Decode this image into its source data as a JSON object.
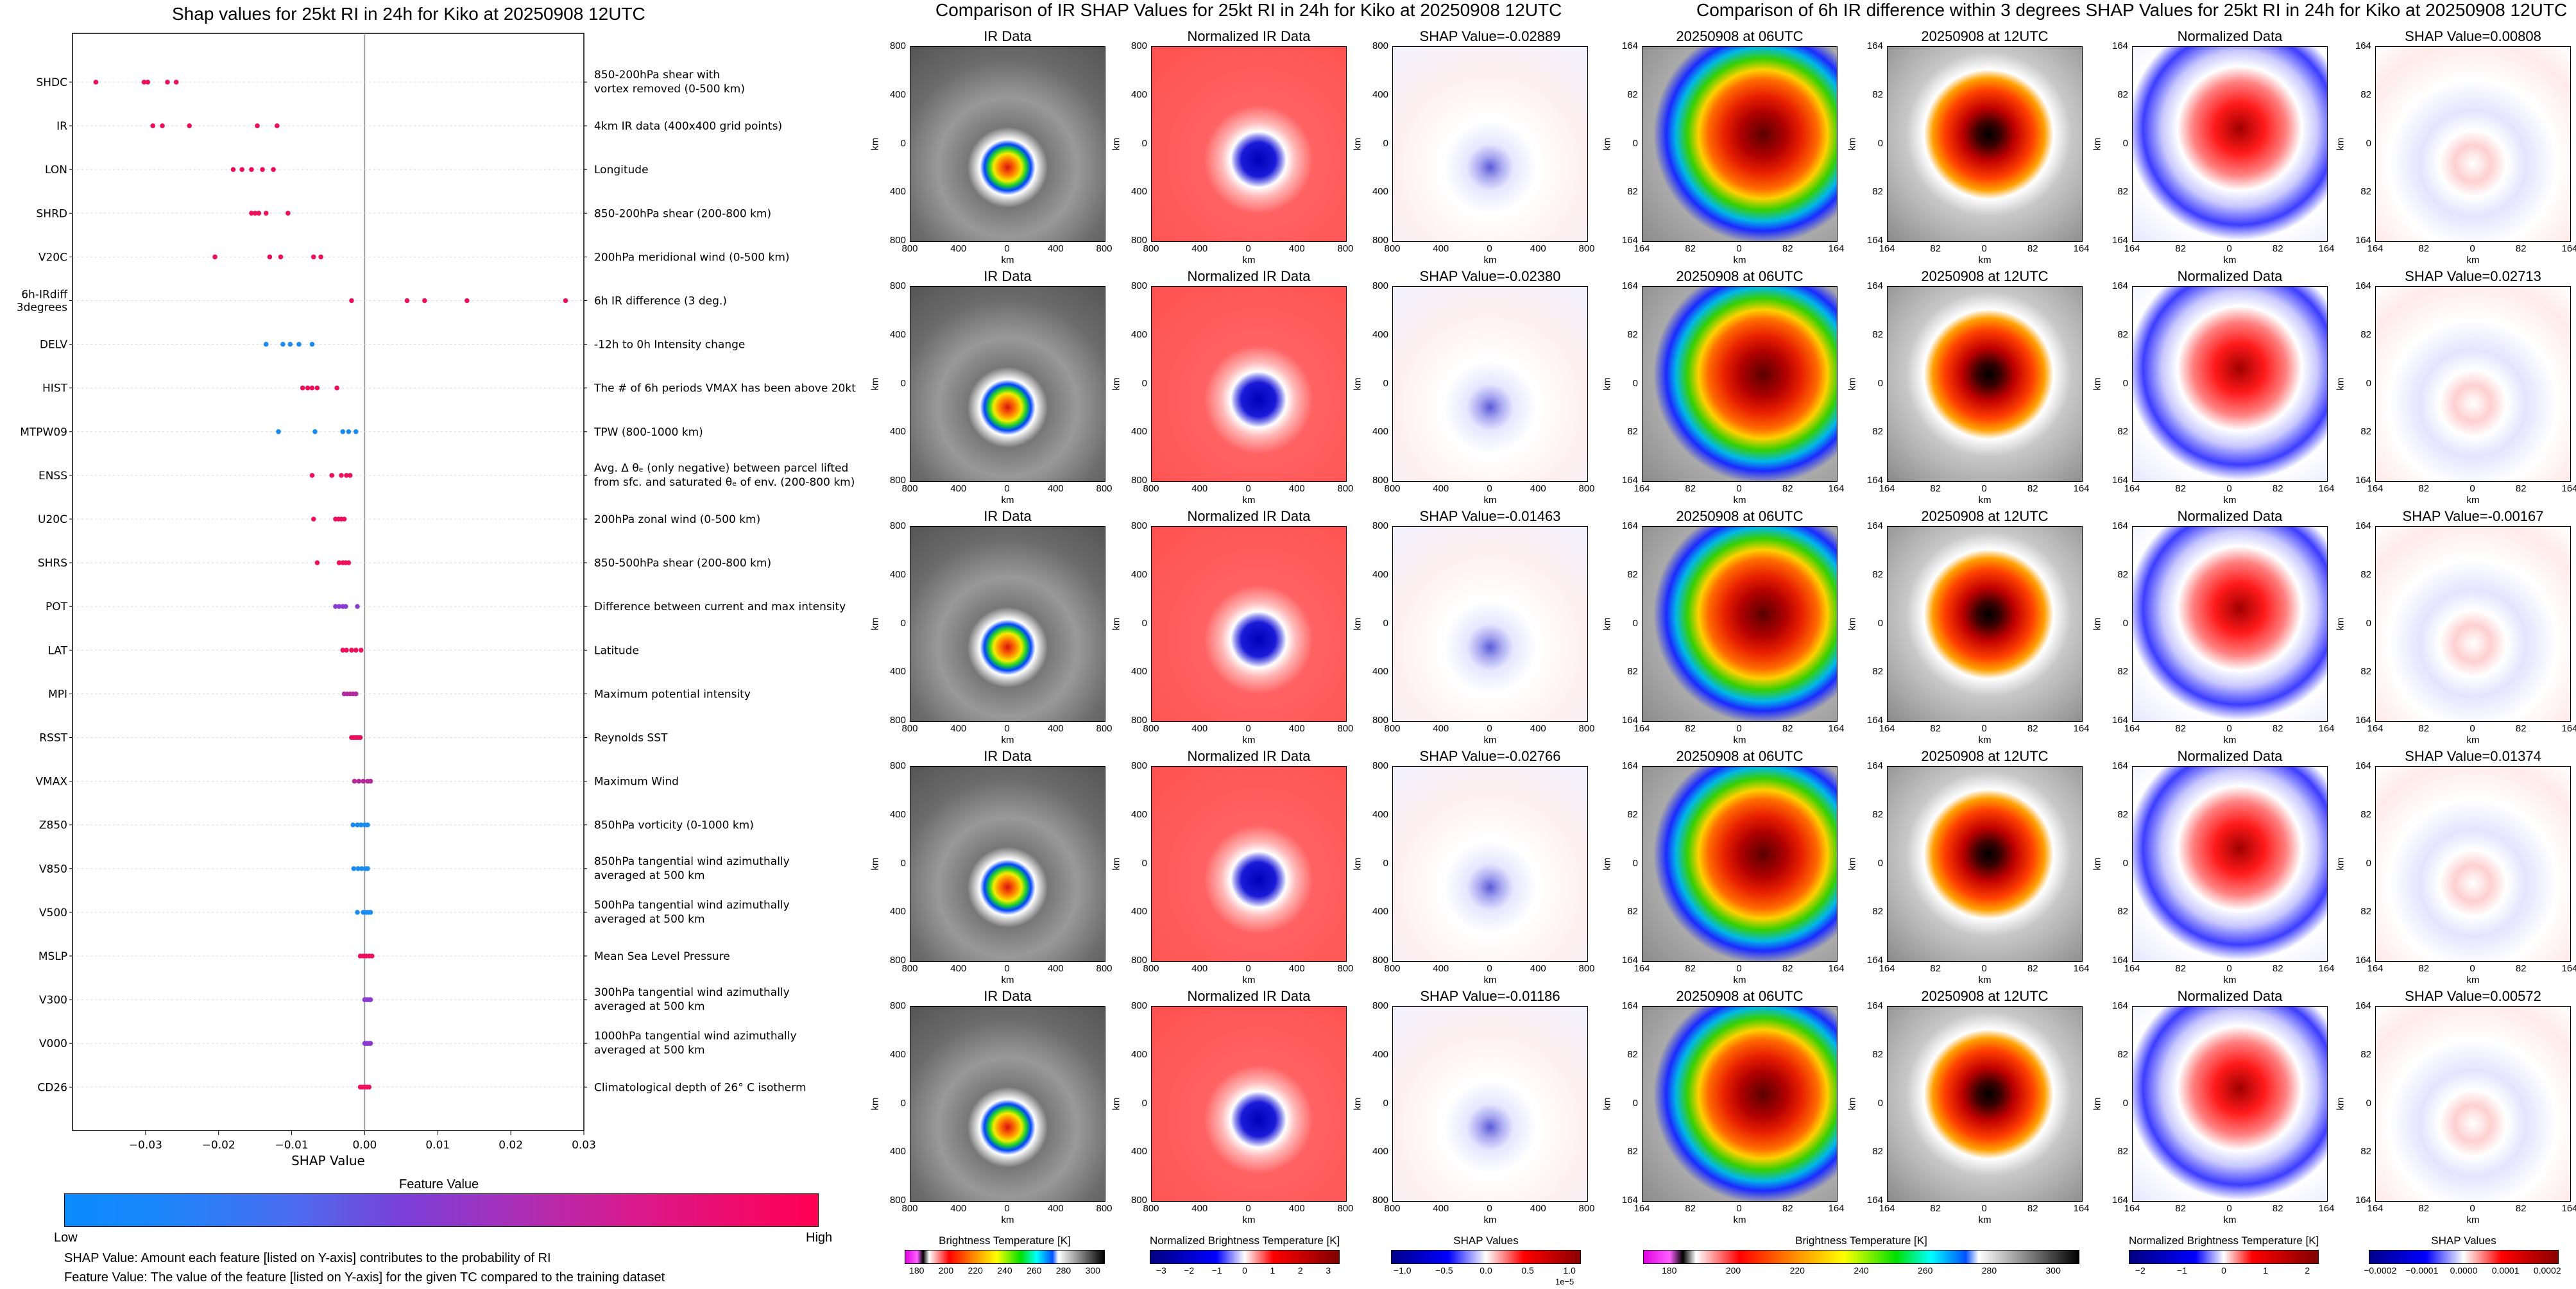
{
  "left_title": "Shap values for 25kt RI in 24h for Kiko at 20250908 12UTC",
  "mid_title": "Comparison of IR SHAP Values for 25kt RI in 24h for Kiko at 20250908 12UTC",
  "right_title": "Comparison of 6h IR difference within 3 degrees SHAP Values for 25kt RI in 24h for Kiko at 20250908 12UTC",
  "shap_colorbar": {
    "title": "Feature Value",
    "low": "Low",
    "high": "High"
  },
  "notes": [
    "SHAP Value: Amount each feature [listed on Y-axis] contributes to the probability of RI",
    "Feature Value: The value of the feature [listed on Y-axis] for the given TC compared to the training dataset"
  ],
  "chart_data": [
    {
      "type": "scatter",
      "title": "Shap values for 25kt RI in 24h for Kiko at 20250908 12UTC",
      "xlabel": "SHAP Value",
      "xlim": [
        -0.04,
        0.03
      ],
      "xticks": [
        -0.03,
        -0.02,
        -0.01,
        0.0,
        0.01,
        0.02,
        0.03
      ],
      "xtick_labels": [
        "−0.03",
        "−0.02",
        "−0.01",
        "0.00",
        "0.01",
        "0.02",
        "0.03"
      ],
      "features": [
        {
          "name": "SHDC",
          "desc": [
            "850-200hPa shear with",
            "vortex removed (0-500 km)"
          ],
          "color": "#ee0f5c",
          "points": [
            -0.0368,
            -0.0302,
            -0.0297,
            -0.027,
            -0.0258
          ]
        },
        {
          "name": "IR",
          "desc": [
            "4km IR data (400x400 grid points)"
          ],
          "color": "#ee0f5c",
          "points": [
            -0.029,
            -0.0277,
            -0.024,
            -0.0147,
            -0.012
          ]
        },
        {
          "name": "LON",
          "desc": [
            "Longitude"
          ],
          "color": "#ee0f5c",
          "points": [
            -0.018,
            -0.0168,
            -0.0155,
            -0.014,
            -0.0125
          ]
        },
        {
          "name": "SHRD",
          "desc": [
            "850-200hPa shear (200-800 km)"
          ],
          "color": "#ee0f5c",
          "points": [
            -0.0155,
            -0.015,
            -0.0145,
            -0.0135,
            -0.0105
          ]
        },
        {
          "name": "V20C",
          "desc": [
            "200hPa meridional wind (0-500 km)"
          ],
          "color": "#ee0f5c",
          "points": [
            -0.0205,
            -0.013,
            -0.0115,
            -0.007,
            -0.006
          ]
        },
        {
          "name": "6h-IRdiff",
          "name2": "3degrees",
          "desc": [
            "6h IR difference (3 deg.)"
          ],
          "color": "#ee0f5c",
          "points": [
            -0.0018,
            0.0058,
            0.0082,
            0.014,
            0.0275
          ]
        },
        {
          "name": "DELV",
          "desc": [
            "-12h to 0h Intensity change"
          ],
          "color": "#1a8cf0",
          "points": [
            -0.0135,
            -0.0112,
            -0.0102,
            -0.009,
            -0.0072
          ]
        },
        {
          "name": "HIST",
          "desc": [
            "The # of 6h periods VMAX has been above 20kt"
          ],
          "color": "#ee0f5c",
          "points": [
            -0.0085,
            -0.0078,
            -0.0072,
            -0.0065,
            -0.0038
          ]
        },
        {
          "name": "MTPW09",
          "desc": [
            "TPW (800-1000 km)"
          ],
          "color": "#1a8cf0",
          "points": [
            -0.0118,
            -0.0068,
            -0.003,
            -0.0022,
            -0.0012
          ]
        },
        {
          "name": "ENSS",
          "desc": [
            "Avg. Δ θₑ (only negative) between parcel lifted",
            "from sfc. and saturated θₑ of env. (200-800 km)"
          ],
          "color": "#ee0f5c",
          "points": [
            -0.0072,
            -0.0045,
            -0.0032,
            -0.0025,
            -0.002
          ]
        },
        {
          "name": "U20C",
          "desc": [
            "200hPa zonal wind (0-500 km)"
          ],
          "color": "#ee0f5c",
          "points": [
            -0.007,
            -0.004,
            -0.0036,
            -0.0032,
            -0.0028
          ]
        },
        {
          "name": "SHRS",
          "desc": [
            "850-500hPa shear (200-800 km)"
          ],
          "color": "#ee0f5c",
          "points": [
            -0.0065,
            -0.0035,
            -0.003,
            -0.0026,
            -0.0022
          ]
        },
        {
          "name": "POT",
          "desc": [
            "Difference between current and max intensity"
          ],
          "color": "#8a3bd0",
          "points": [
            -0.004,
            -0.0035,
            -0.003,
            -0.0026,
            -0.001
          ]
        },
        {
          "name": "LAT",
          "desc": [
            "Latitude"
          ],
          "color": "#ee0f5c",
          "points": [
            -0.003,
            -0.0025,
            -0.0018,
            -0.0012,
            -0.0005
          ]
        },
        {
          "name": "MPI",
          "desc": [
            "Maximum potential intensity"
          ],
          "color": "#b22a9a",
          "points": [
            -0.0028,
            -0.0024,
            -0.002,
            -0.0016,
            -0.0012
          ]
        },
        {
          "name": "RSST",
          "desc": [
            "Reynolds SST"
          ],
          "color": "#ee0f5c",
          "points": [
            -0.0018,
            -0.0015,
            -0.0012,
            -0.0009,
            -0.0006
          ]
        },
        {
          "name": "VMAX",
          "desc": [
            "Maximum Wind"
          ],
          "color": "#b22a9a",
          "points": [
            -0.0014,
            -0.0008,
            -0.0002,
            0.0004,
            0.0008
          ]
        },
        {
          "name": "Z850",
          "desc": [
            "850hPa vorticity (0-1000 km)"
          ],
          "color": "#1a8cf0",
          "points": [
            -0.0016,
            -0.001,
            -0.0005,
            0.0,
            0.0004
          ]
        },
        {
          "name": "V850",
          "desc": [
            "850hPa tangential wind azimuthally",
            "averaged at 500 km"
          ],
          "color": "#1a8cf0",
          "points": [
            -0.0015,
            -0.0009,
            -0.0004,
            0.0001,
            0.0004
          ]
        },
        {
          "name": "V500",
          "desc": [
            "500hPa tangential wind azimuthally",
            "averaged at 500 km"
          ],
          "color": "#1a8cf0",
          "points": [
            -0.001,
            -0.0002,
            0.0002,
            0.0005,
            0.0008
          ]
        },
        {
          "name": "MSLP",
          "desc": [
            "Mean Sea Level Pressure"
          ],
          "color": "#ee0f5c",
          "points": [
            -0.0006,
            -0.0002,
            0.0002,
            0.0006,
            0.001
          ]
        },
        {
          "name": "V300",
          "desc": [
            "300hPa tangential wind azimuthally",
            "averaged at 500 km"
          ],
          "color": "#8a3bd0",
          "points": [
            0.0,
            0.0002,
            0.0004,
            0.0006,
            0.0008
          ]
        },
        {
          "name": "V000",
          "desc": [
            "1000hPa tangential wind azimuthally",
            "averaged at 500 km"
          ],
          "color": "#8a3bd0",
          "points": [
            0.0,
            0.0002,
            0.0004,
            0.0006,
            0.0008
          ]
        },
        {
          "name": "CD26",
          "desc": [
            "Climatological depth of 26° C isotherm"
          ],
          "color": "#ee0f5c",
          "points": [
            -0.0006,
            -0.0003,
            0.0,
            0.0003,
            0.0006
          ]
        }
      ]
    },
    {
      "type": "heatmap",
      "title": "Comparison of IR SHAP Values for 25kt RI in 24h for Kiko at 20250908 12UTC",
      "xlabel": "km",
      "ylabel": "km",
      "x_ticks": [
        "800",
        "400",
        "0",
        "400",
        "800"
      ],
      "y_ticks": [
        "800",
        "400",
        "0",
        "400",
        "800"
      ],
      "column_titles": [
        "IR Data",
        "Normalized IR Data"
      ],
      "shap_values": [
        "SHAP Value=-0.02889",
        "SHAP Value=-0.02380",
        "SHAP Value=-0.01463",
        "SHAP Value=-0.02766",
        "SHAP Value=-0.01186"
      ],
      "colorbars": [
        {
          "label": "Brightness Temperature [K]",
          "ticks": [
            "180",
            "200",
            "220",
            "240",
            "260",
            "280",
            "300"
          ]
        },
        {
          "label": "Normalized Brightness Temperature [K]",
          "ticks": [
            "−3",
            "−2",
            "−1",
            "0",
            "1",
            "2",
            "3"
          ]
        },
        {
          "label": "SHAP Values",
          "ticks": [
            "−1.0",
            "−0.5",
            "0.0",
            "0.5",
            "1.0"
          ],
          "offset": "1e−5"
        }
      ]
    },
    {
      "type": "heatmap",
      "title": "Comparison of 6h IR difference within 3 degrees SHAP Values for 25kt RI in 24h for Kiko at 20250908 12UTC",
      "xlabel": "km",
      "ylabel": "km",
      "x_ticks": [
        "164",
        "82",
        "0",
        "82",
        "164"
      ],
      "y_ticks": [
        "164",
        "82",
        "0",
        "82",
        "164"
      ],
      "column_titles": [
        "20250908 at 06UTC",
        "20250908 at 12UTC",
        "Normalized Data"
      ],
      "shap_values": [
        "SHAP Value=0.00808",
        "SHAP Value=0.02713",
        "SHAP Value=-0.00167",
        "SHAP Value=0.01374",
        "SHAP Value=0.00572"
      ],
      "colorbars": [
        {
          "label": "Brightness Temperature [K]",
          "ticks": [
            "180",
            "200",
            "220",
            "240",
            "260",
            "280",
            "300"
          ]
        },
        {
          "label": "Normalized Brightness Temperature [K]",
          "ticks": [
            "−2",
            "−1",
            "0",
            "1",
            "2"
          ]
        },
        {
          "label": "SHAP Values",
          "ticks": [
            "−0.0002",
            "−0.0001",
            "0.0000",
            "0.0001",
            "0.0002"
          ]
        }
      ]
    }
  ],
  "colors": {
    "low": "#0a8cff",
    "mid": "#7a3fd8",
    "high": "#ff0052",
    "axis": "#000000"
  }
}
